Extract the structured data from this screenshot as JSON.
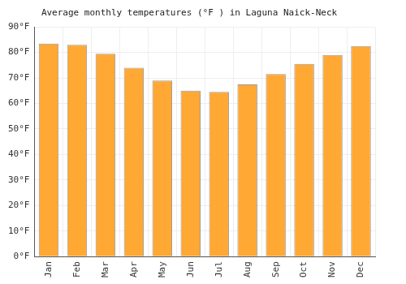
{
  "chart_data": {
    "type": "bar",
    "title": "Average monthly temperatures (°F ) in Laguna Naick-Neck",
    "categories": [
      "Jan",
      "Feb",
      "Mar",
      "Apr",
      "May",
      "Jun",
      "Jul",
      "Aug",
      "Sep",
      "Oct",
      "Nov",
      "Dec"
    ],
    "values": [
      83.5,
      83,
      79.5,
      74,
      69,
      65,
      64.5,
      67.5,
      71.5,
      75.5,
      79,
      82.5
    ],
    "color": "#ffa833",
    "ylim": [
      0,
      90
    ],
    "yticks": [
      {
        "value": 0,
        "label": "0°F"
      },
      {
        "value": 10,
        "label": "10°F"
      },
      {
        "value": 20,
        "label": "20°F"
      },
      {
        "value": 30,
        "label": "30°F"
      },
      {
        "value": 40,
        "label": "40°F"
      },
      {
        "value": 50,
        "label": "50°F"
      },
      {
        "value": 60,
        "label": "60°F"
      },
      {
        "value": 70,
        "label": "70°F"
      },
      {
        "value": 80,
        "label": "80°F"
      },
      {
        "value": 90,
        "label": "90°F"
      }
    ],
    "grid": true
  }
}
